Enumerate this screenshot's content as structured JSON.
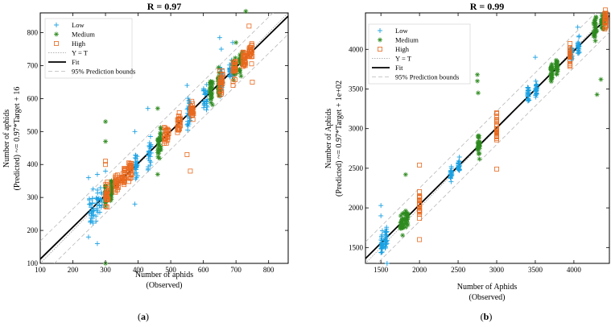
{
  "colors": {
    "low": "#1ba1e2",
    "medium": "#2e8b1f",
    "high": "#e8691e",
    "fit": "#000000",
    "bounds": "#b8b8b8",
    "yt": "#9a9a9a"
  },
  "chart_data": [
    {
      "type": "scatter",
      "panel_label": "(a)",
      "title": "R = 0.97",
      "xlabel": "Number of aphids",
      "xlabel2": "(Observed)",
      "ylabel": "Number of aphids",
      "ylabel2": "(Predicted) ~= 0.97*Target + 16",
      "xlim": [
        100,
        860
      ],
      "ylim": [
        100,
        860
      ],
      "xticks": [
        100,
        200,
        300,
        400,
        500,
        600,
        700,
        800
      ],
      "yticks": [
        100,
        200,
        300,
        400,
        500,
        600,
        700,
        800
      ],
      "legend": [
        "Low",
        "Medium",
        "High",
        "Y = T",
        "Fit",
        "95% Prediction bounds"
      ],
      "fit": {
        "slope": 0.97,
        "intercept": 16
      },
      "bounds_offset": 55,
      "series": [
        {
          "name": "Low",
          "marker": "plus",
          "groups": [
            [
              250,
              265,
              75
            ],
            [
              270,
              290,
              70
            ],
            [
              390,
              400,
              60
            ],
            [
              430,
              440,
              70
            ],
            [
              550,
              560,
              60
            ],
            [
              600,
              615,
              50
            ],
            [
              650,
              660,
              60
            ],
            [
              680,
              690,
              40
            ]
          ],
          "points": [
            [
              248,
              360
            ],
            [
              248,
              180
            ],
            [
              275,
              370
            ],
            [
              275,
              160
            ],
            [
              300,
              380
            ],
            [
              390,
              500
            ],
            [
              390,
              280
            ],
            [
              430,
              570
            ],
            [
              550,
              640
            ],
            [
              650,
              785
            ],
            [
              655,
              750
            ],
            [
              690,
              770
            ]
          ]
        },
        {
          "name": "Medium",
          "marker": "asterisk",
          "groups": [
            [
              300,
              300,
              50
            ],
            [
              315,
              320,
              40
            ],
            [
              460,
              470,
              60
            ],
            [
              620,
              630,
              55
            ],
            [
              645,
              650,
              55
            ],
            [
              690,
              700,
              50
            ],
            [
              710,
              720,
              45
            ]
          ],
          "points": [
            [
              300,
              530
            ],
            [
              300,
              470
            ],
            [
              300,
              100
            ],
            [
              460,
              570
            ],
            [
              460,
              370
            ],
            [
              730,
              865
            ],
            [
              700,
              770
            ]
          ]
        },
        {
          "name": "High",
          "marker": "square",
          "groups": [
            [
              300,
              310,
              55
            ],
            [
              330,
              340,
              40
            ],
            [
              350,
              360,
              45
            ],
            [
              370,
              380,
              45
            ],
            [
              480,
              495,
              50
            ],
            [
              520,
              530,
              50
            ],
            [
              560,
              570,
              50
            ],
            [
              650,
              660,
              55
            ],
            [
              690,
              700,
              50
            ],
            [
              720,
              730,
              50
            ],
            [
              740,
              750,
              45
            ]
          ],
          "points": [
            [
              300,
              410
            ],
            [
              300,
              400
            ],
            [
              550,
              430
            ],
            [
              560,
              380
            ],
            [
              740,
              820
            ],
            [
              750,
              650
            ]
          ]
        }
      ]
    },
    {
      "type": "scatter",
      "panel_label": "(b)",
      "title": "R = 0.99",
      "xlabel": "Number of Aphids",
      "xlabel2": "(Observed)",
      "ylabel": "Number of Aphids",
      "ylabel2": "(Predicted) ~= 0.97*Target + 1e+02",
      "xlim": [
        1300,
        4460
      ],
      "ylim": [
        1300,
        4460
      ],
      "xticks": [
        1500,
        2000,
        2500,
        3000,
        3500,
        4000
      ],
      "yticks": [
        1500,
        2000,
        2500,
        3000,
        3500,
        4000
      ],
      "legend": [
        "Low",
        "Medium",
        "High",
        "Y = T",
        "Fit",
        "95% Prediction bounds"
      ],
      "fit": {
        "slope": 0.97,
        "intercept": 100
      },
      "bounds_offset": 210,
      "series": [
        {
          "name": "Low",
          "marker": "plus",
          "groups": [
            [
              1500,
              1520,
              200
            ],
            [
              1550,
              1580,
              180
            ],
            [
              2400,
              2420,
              120
            ],
            [
              2500,
              2520,
              120
            ],
            [
              3400,
              3420,
              140
            ],
            [
              3500,
              3520,
              150
            ],
            [
              3950,
              3980,
              160
            ],
            [
              4050,
              4070,
              140
            ]
          ],
          "points": [
            [
              1500,
              2030
            ],
            [
              1500,
              1900
            ],
            [
              1580,
              1300
            ],
            [
              3500,
              3900
            ],
            [
              4050,
              4280
            ]
          ]
        },
        {
          "name": "Medium",
          "marker": "asterisk",
          "groups": [
            [
              1750,
              1800,
              220
            ],
            [
              1820,
              1850,
              180
            ],
            [
              2750,
              2780,
              200
            ],
            [
              3700,
              3720,
              200
            ],
            [
              3770,
              3790,
              150
            ],
            [
              4250,
              4300,
              220
            ],
            [
              4350,
              4400,
              200
            ]
          ],
          "points": [
            [
              2750,
              3680
            ],
            [
              2750,
              3600
            ],
            [
              2760,
              3450
            ],
            [
              1820,
              2420
            ],
            [
              4300,
              3430
            ],
            [
              4350,
              3620
            ]
          ]
        },
        {
          "name": "High",
          "marker": "square",
          "groups": [
            [
              2000,
              2000,
              250
            ],
            [
              3000,
              3000,
              280
            ],
            [
              3950,
              3950,
              200
            ],
            [
              4400,
              4420,
              200
            ]
          ],
          "points": [
            [
              2000,
              2540
            ],
            [
              2000,
              1600
            ],
            [
              3000,
              3200
            ],
            [
              3000,
              2490
            ]
          ]
        }
      ]
    }
  ]
}
